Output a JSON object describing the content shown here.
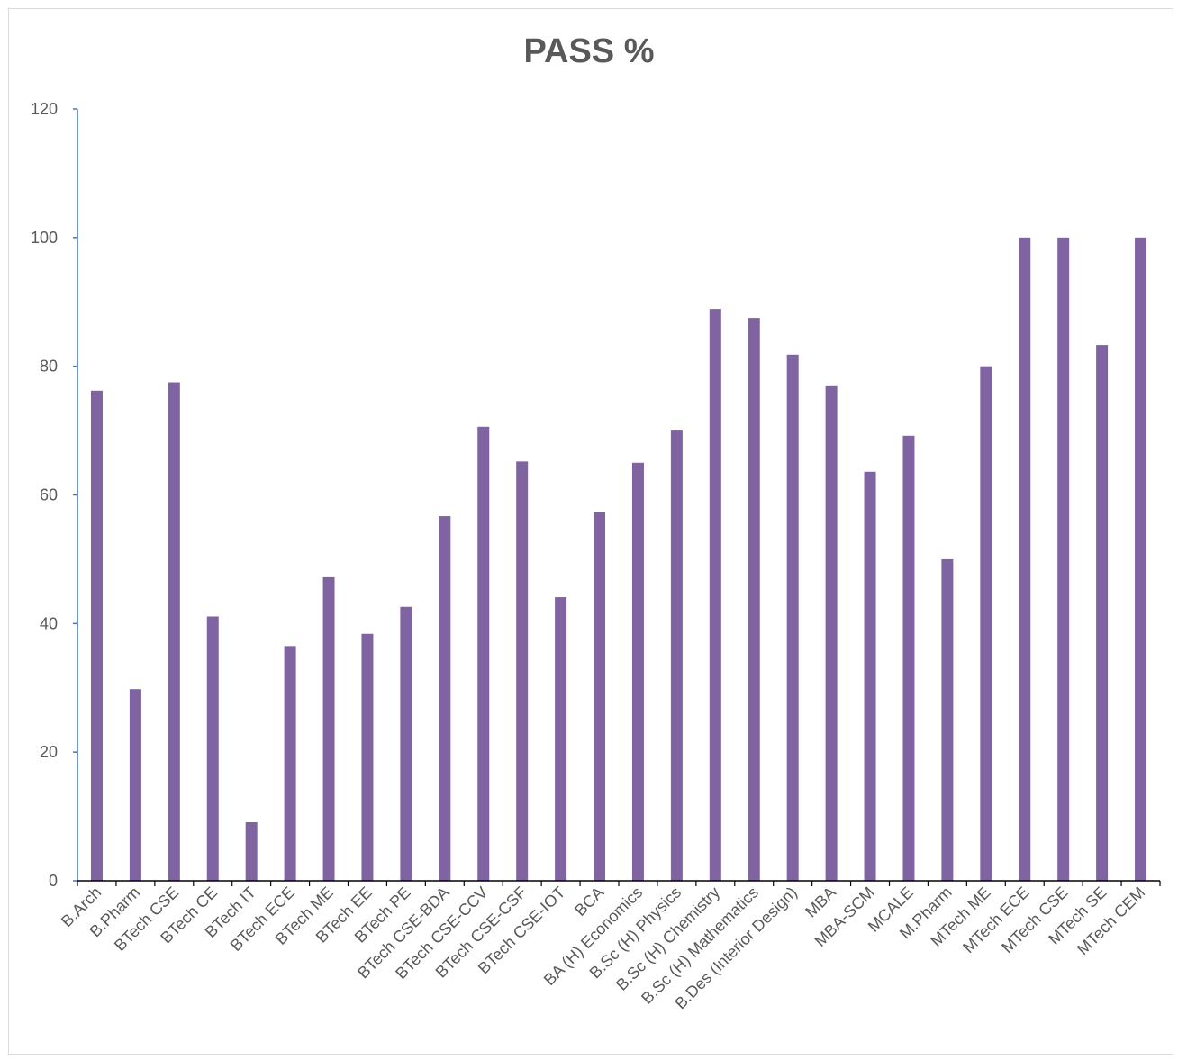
{
  "chart_data": {
    "type": "bar",
    "title": "PASS %",
    "xlabel": "",
    "ylabel": "",
    "ylim": [
      0,
      120
    ],
    "yticks": [
      0,
      20,
      40,
      60,
      80,
      100,
      120
    ],
    "grid": false,
    "legend": "none",
    "bar_color": "#8064a2",
    "axis_color": "#4472c4",
    "categories": [
      "B.Arch",
      "B.Pharm",
      "BTech CSE",
      "BTech CE",
      "BTech IT",
      "BTech ECE",
      "BTech ME",
      "BTech EE",
      "BTech PE",
      "BTech CSE-BDA",
      "BTech CSE-CCV",
      "BTech CSE-CSF",
      "BTech CSE-IOT",
      "BCA",
      "BA (H) Economics",
      "B.Sc (H) Physics",
      "B.Sc (H) Chemistry",
      "B.Sc (H) Mathematics",
      "B.Des (Interior Design)",
      "MBA",
      "MBA-SCM",
      "MCALE",
      "M.Pharm",
      "MTech ME",
      "MTech ECE",
      "MTech CSE",
      "MTech SE",
      "MTech CEM"
    ],
    "values": [
      76.2,
      29.8,
      77.5,
      41.1,
      9.1,
      36.5,
      47.2,
      38.4,
      42.6,
      56.7,
      70.6,
      65.2,
      44.1,
      57.3,
      65.0,
      70.0,
      88.9,
      87.5,
      81.8,
      76.9,
      63.6,
      69.2,
      50.0,
      80.0,
      100,
      100,
      83.3,
      100
    ]
  }
}
